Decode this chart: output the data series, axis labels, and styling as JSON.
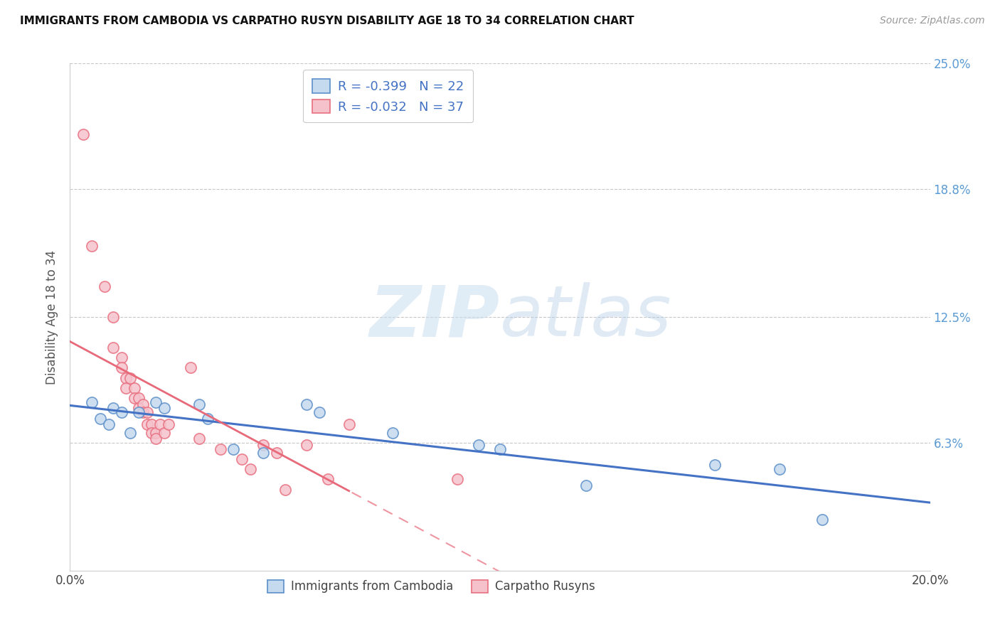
{
  "title": "IMMIGRANTS FROM CAMBODIA VS CARPATHO RUSYN DISABILITY AGE 18 TO 34 CORRELATION CHART",
  "source": "Source: ZipAtlas.com",
  "ylabel": "Disability Age 18 to 34",
  "xlim": [
    0.0,
    0.2
  ],
  "ylim": [
    0.0,
    0.25
  ],
  "ytick_labels": [
    "6.3%",
    "12.5%",
    "18.8%",
    "25.0%"
  ],
  "ytick_positions": [
    0.063,
    0.125,
    0.188,
    0.25
  ],
  "watermark_zip": "ZIP",
  "watermark_atlas": "atlas",
  "legend_r_blue": "-0.399",
  "legend_n_blue": "22",
  "legend_r_pink": "-0.032",
  "legend_n_pink": "37",
  "blue_face_color": "#c5d9ef",
  "pink_face_color": "#f5c2cc",
  "blue_edge_color": "#5b8fc9",
  "pink_edge_color": "#e87080",
  "blue_line_color": "#4472c4",
  "pink_line_color": "#e8697a",
  "blue_scatter": [
    [
      0.005,
      0.083
    ],
    [
      0.007,
      0.075
    ],
    [
      0.009,
      0.072
    ],
    [
      0.01,
      0.08
    ],
    [
      0.012,
      0.078
    ],
    [
      0.014,
      0.068
    ],
    [
      0.016,
      0.078
    ],
    [
      0.02,
      0.083
    ],
    [
      0.022,
      0.08
    ],
    [
      0.03,
      0.082
    ],
    [
      0.032,
      0.075
    ],
    [
      0.038,
      0.06
    ],
    [
      0.045,
      0.058
    ],
    [
      0.055,
      0.082
    ],
    [
      0.058,
      0.078
    ],
    [
      0.075,
      0.068
    ],
    [
      0.095,
      0.062
    ],
    [
      0.1,
      0.06
    ],
    [
      0.12,
      0.042
    ],
    [
      0.15,
      0.052
    ],
    [
      0.165,
      0.05
    ],
    [
      0.175,
      0.025
    ]
  ],
  "pink_scatter": [
    [
      0.003,
      0.215
    ],
    [
      0.005,
      0.16
    ],
    [
      0.008,
      0.14
    ],
    [
      0.01,
      0.125
    ],
    [
      0.01,
      0.11
    ],
    [
      0.012,
      0.105
    ],
    [
      0.012,
      0.1
    ],
    [
      0.013,
      0.095
    ],
    [
      0.013,
      0.09
    ],
    [
      0.014,
      0.095
    ],
    [
      0.015,
      0.09
    ],
    [
      0.015,
      0.085
    ],
    [
      0.016,
      0.085
    ],
    [
      0.016,
      0.08
    ],
    [
      0.017,
      0.082
    ],
    [
      0.017,
      0.078
    ],
    [
      0.018,
      0.078
    ],
    [
      0.018,
      0.072
    ],
    [
      0.019,
      0.072
    ],
    [
      0.019,
      0.068
    ],
    [
      0.02,
      0.068
    ],
    [
      0.02,
      0.065
    ],
    [
      0.021,
      0.072
    ],
    [
      0.022,
      0.068
    ],
    [
      0.023,
      0.072
    ],
    [
      0.028,
      0.1
    ],
    [
      0.03,
      0.065
    ],
    [
      0.035,
      0.06
    ],
    [
      0.04,
      0.055
    ],
    [
      0.042,
      0.05
    ],
    [
      0.045,
      0.062
    ],
    [
      0.048,
      0.058
    ],
    [
      0.05,
      0.04
    ],
    [
      0.055,
      0.062
    ],
    [
      0.06,
      0.045
    ],
    [
      0.065,
      0.072
    ],
    [
      0.09,
      0.045
    ]
  ],
  "grid_color": "#c8c8c8",
  "background_color": "#ffffff"
}
